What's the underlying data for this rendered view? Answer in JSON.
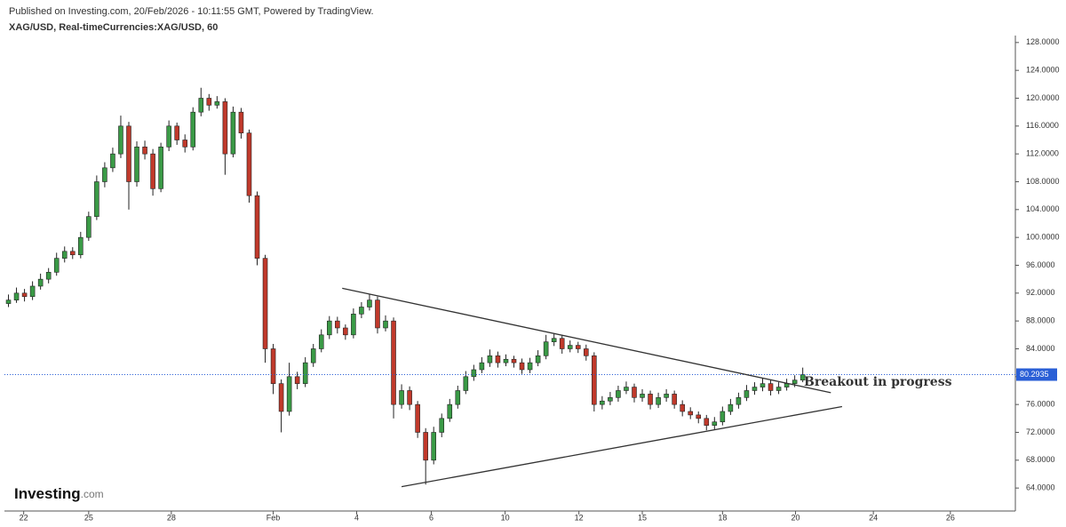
{
  "header": {
    "published": "Published on Investing.com, 20/Feb/2026 - 10:11:55 GMT, Powered by TradingView.",
    "symbol": "XAG/USD, Real-timeCurrencies:XAG/USD, 60"
  },
  "logo": {
    "name": "Investing",
    "suffix": ".com"
  },
  "chart_data": {
    "type": "candlestick",
    "up_color": "#3a9a46",
    "down_color": "#c0392b",
    "ohlc": [
      [
        90.5,
        91.8,
        90,
        91
      ],
      [
        91,
        92.8,
        90.6,
        92
      ],
      [
        92,
        92.6,
        90.8,
        91.5
      ],
      [
        91.5,
        93.7,
        91,
        93
      ],
      [
        93,
        94.8,
        92.5,
        94
      ],
      [
        94,
        95.6,
        93.4,
        95
      ],
      [
        95,
        97.8,
        94.5,
        97
      ],
      [
        97,
        98.7,
        96.4,
        98
      ],
      [
        98,
        98.6,
        96.9,
        97.5
      ],
      [
        97.5,
        100.8,
        97,
        100
      ],
      [
        100,
        103.7,
        99.5,
        103
      ],
      [
        103,
        108.9,
        102.5,
        108
      ],
      [
        108,
        110.8,
        107.2,
        110
      ],
      [
        110,
        112.9,
        109.4,
        112
      ],
      [
        112,
        117.5,
        111.4,
        116
      ],
      [
        116,
        116.6,
        104,
        108
      ],
      [
        108,
        113.8,
        107.3,
        113
      ],
      [
        113,
        113.9,
        111.2,
        112
      ],
      [
        112,
        112.7,
        106,
        107
      ],
      [
        107,
        113.6,
        106.5,
        113
      ],
      [
        113,
        116.8,
        112.4,
        116
      ],
      [
        116,
        116.5,
        113.3,
        114
      ],
      [
        114,
        114.8,
        112.2,
        113
      ],
      [
        113,
        118.7,
        112.5,
        118
      ],
      [
        118,
        121.5,
        117.4,
        120
      ],
      [
        120,
        120.6,
        118.2,
        119
      ],
      [
        119,
        120.3,
        118.5,
        119.5
      ],
      [
        119.5,
        120,
        109,
        112
      ],
      [
        112,
        118.8,
        111.5,
        118
      ],
      [
        118,
        118.6,
        114.2,
        115
      ],
      [
        115,
        115.5,
        105,
        106
      ],
      [
        106,
        106.6,
        96,
        97
      ],
      [
        97,
        97.5,
        82,
        84
      ],
      [
        84,
        84.7,
        77.5,
        79
      ],
      [
        79,
        79.6,
        72,
        75
      ],
      [
        75,
        82,
        74.4,
        80
      ],
      [
        80,
        80.7,
        78.2,
        79
      ],
      [
        79,
        82.8,
        78.5,
        82
      ],
      [
        82,
        84.7,
        81.4,
        84
      ],
      [
        84,
        86.8,
        83.5,
        86
      ],
      [
        86,
        88.7,
        85.4,
        88
      ],
      [
        88,
        88.6,
        86.2,
        87
      ],
      [
        87,
        87.5,
        85.3,
        86
      ],
      [
        86,
        89.8,
        85.5,
        89
      ],
      [
        89,
        90.7,
        88.4,
        90
      ],
      [
        90,
        91.9,
        89.5,
        91
      ],
      [
        91,
        91.5,
        86.2,
        87
      ],
      [
        87,
        88.8,
        86.5,
        88
      ],
      [
        88,
        88.5,
        74,
        76
      ],
      [
        76,
        78.9,
        75.4,
        78
      ],
      [
        78,
        78.6,
        75.2,
        76
      ],
      [
        76,
        76.5,
        71.2,
        72
      ],
      [
        72,
        72.6,
        64.5,
        68
      ],
      [
        68,
        72.8,
        67.4,
        72
      ],
      [
        72,
        74.7,
        71.3,
        74
      ],
      [
        74,
        76.8,
        73.5,
        76
      ],
      [
        76,
        78.7,
        75.4,
        78
      ],
      [
        78,
        80.8,
        77.5,
        80
      ],
      [
        80,
        81.7,
        79.4,
        81
      ],
      [
        81,
        82.8,
        80.5,
        82
      ],
      [
        82,
        83.9,
        81.4,
        83
      ],
      [
        83,
        83.6,
        81.3,
        82
      ],
      [
        82,
        83.2,
        81.5,
        82.5
      ],
      [
        82.5,
        83,
        81.3,
        82
      ],
      [
        82,
        82.6,
        80.4,
        81
      ],
      [
        81,
        82.7,
        80.5,
        82
      ],
      [
        82,
        83.8,
        81.5,
        83
      ],
      [
        83,
        86,
        82.5,
        85
      ],
      [
        85,
        86.2,
        84.4,
        85.5
      ],
      [
        85.5,
        86,
        83.3,
        84
      ],
      [
        84,
        85.2,
        83.5,
        84.5
      ],
      [
        84.5,
        85,
        83.4,
        84
      ],
      [
        84,
        84.6,
        82.3,
        83
      ],
      [
        83,
        83.5,
        75,
        76
      ],
      [
        76,
        77.2,
        75.3,
        76.5
      ],
      [
        76.5,
        77.8,
        75.9,
        77
      ],
      [
        77,
        78.7,
        76.4,
        78
      ],
      [
        78,
        79.3,
        77.5,
        78.5
      ],
      [
        78.5,
        79,
        76.3,
        77
      ],
      [
        77,
        78.2,
        76.4,
        77.5
      ],
      [
        77.5,
        78,
        75.3,
        76
      ],
      [
        76,
        77.7,
        75.5,
        77
      ],
      [
        77,
        78.2,
        76.4,
        77.5
      ],
      [
        77.5,
        78,
        75.4,
        76
      ],
      [
        76,
        76.6,
        74.3,
        75
      ],
      [
        75,
        75.6,
        73.9,
        74.5
      ],
      [
        74.5,
        75,
        73.3,
        74
      ],
      [
        74,
        74.5,
        72.3,
        73
      ],
      [
        73,
        74.2,
        72.4,
        73.5
      ],
      [
        73.5,
        75.7,
        73,
        75
      ],
      [
        75,
        76.8,
        74.5,
        76
      ],
      [
        76,
        77.7,
        75.4,
        77
      ],
      [
        77,
        78.8,
        76.5,
        78
      ],
      [
        78,
        79.2,
        77.4,
        78.5
      ],
      [
        78.5,
        79.8,
        77.9,
        79
      ],
      [
        79,
        79.5,
        77.3,
        78
      ],
      [
        78,
        79.2,
        77.5,
        78.5
      ],
      [
        78.5,
        79.7,
        78,
        79
      ],
      [
        79,
        80.2,
        78.5,
        79.5
      ],
      [
        79.5,
        81.3,
        79.2,
        80.2935
      ]
    ],
    "last_price": 80.2935,
    "xlim": [
      -0.5,
      125.5
    ],
    "xticks": [
      {
        "value": 1.9,
        "label": "22"
      },
      {
        "value": 10,
        "label": "25"
      },
      {
        "value": 20.3,
        "label": "28"
      },
      {
        "value": 33,
        "label": "Feb"
      },
      {
        "value": 43.4,
        "label": "4"
      },
      {
        "value": 52.7,
        "label": "6"
      },
      {
        "value": 61.9,
        "label": "10"
      },
      {
        "value": 71.1,
        "label": "12"
      },
      {
        "value": 79,
        "label": "15"
      },
      {
        "value": 89,
        "label": "18"
      },
      {
        "value": 98.1,
        "label": "20"
      },
      {
        "value": 107.8,
        "label": "24"
      },
      {
        "value": 117.4,
        "label": "26"
      }
    ],
    "ylim": [
      60.7,
      129
    ],
    "yticks": [
      {
        "value": 64,
        "label": "64.0000"
      },
      {
        "value": 68,
        "label": "68.0000"
      },
      {
        "value": 72,
        "label": "72.0000"
      },
      {
        "value": 76,
        "label": "76.0000"
      },
      {
        "value": 80,
        "label": "80.0000"
      },
      {
        "value": 84,
        "label": "84.0000"
      },
      {
        "value": 88,
        "label": "88.0000"
      },
      {
        "value": 92,
        "label": "92.0000"
      },
      {
        "value": 96,
        "label": "96.0000"
      },
      {
        "value": 100,
        "label": "100.0000"
      },
      {
        "value": 104,
        "label": "104.0000"
      },
      {
        "value": 108,
        "label": "108.0000"
      },
      {
        "value": 112,
        "label": "112.0000"
      },
      {
        "value": 116,
        "label": "116.0000"
      },
      {
        "value": 120,
        "label": "120.0000"
      },
      {
        "value": 124,
        "label": "124.0000"
      },
      {
        "value": 128,
        "label": "128.0000"
      }
    ],
    "trendlines": [
      {
        "x": [
          41.6,
          102.5
        ],
        "y": [
          92.7,
          77.7
        ]
      },
      {
        "x": [
          49.0,
          103.9
        ],
        "y": [
          64.2,
          75.7
        ]
      }
    ],
    "annotation": "Breakout in progress"
  }
}
